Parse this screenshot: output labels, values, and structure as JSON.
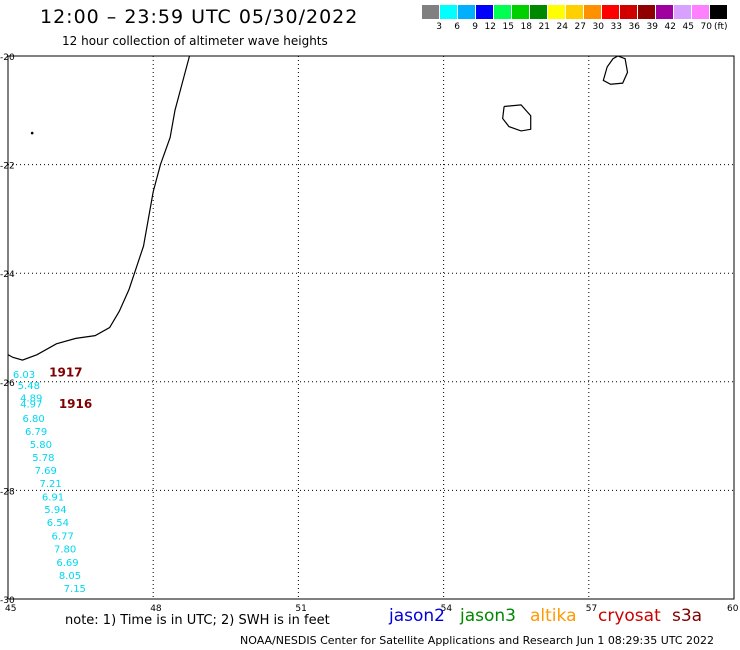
{
  "header": {
    "title": "12:00 – 23:59 UTC 05/30/2022",
    "subtitle": "12 hour collection of altimeter wave heights"
  },
  "color_scale": {
    "labels": [
      "3",
      "6",
      "9",
      "12",
      "15",
      "18",
      "21",
      "24",
      "27",
      "30",
      "33",
      "36",
      "39",
      "42",
      "45",
      "70"
    ],
    "unit": "(ft)",
    "colors": [
      "#808080",
      "#00ffff",
      "#00b0ff",
      "#0000ff",
      "#00ff50",
      "#00d000",
      "#008800",
      "#ffff00",
      "#ffd000",
      "#ff9000",
      "#ff0000",
      "#d00000",
      "#900000",
      "#a000a0",
      "#d8a0ff",
      "#ff80ff",
      "#000000"
    ]
  },
  "map": {
    "x_ticks": [
      "45",
      "48",
      "51",
      "54",
      "57",
      "60"
    ],
    "y_ticks": [
      "-20",
      "-22",
      "-24",
      "-26",
      "-28",
      "-30"
    ],
    "x_range": [
      45,
      60
    ],
    "y_range": [
      -30,
      -20
    ],
    "coast_color": "#000000"
  },
  "wave_labels": [
    {
      "value": "6.03",
      "lon": 45.1,
      "lat": -25.93
    },
    {
      "value": "5.48",
      "lon": 45.2,
      "lat": -26.13
    },
    {
      "value": "4.89",
      "lon": 45.25,
      "lat": -26.36
    },
    {
      "value": "4.97",
      "lon": 45.25,
      "lat": -26.47
    },
    {
      "value": "6.80",
      "lon": 45.3,
      "lat": -26.74
    },
    {
      "value": "6.79",
      "lon": 45.35,
      "lat": -26.98
    },
    {
      "value": "5.80",
      "lon": 45.45,
      "lat": -27.22
    },
    {
      "value": "5.78",
      "lon": 45.5,
      "lat": -27.46
    },
    {
      "value": "7.69",
      "lon": 45.55,
      "lat": -27.7
    },
    {
      "value": "7.21",
      "lon": 45.65,
      "lat": -27.94
    },
    {
      "value": "6.91",
      "lon": 45.7,
      "lat": -28.19
    },
    {
      "value": "5.94",
      "lon": 45.75,
      "lat": -28.42
    },
    {
      "value": "6.54",
      "lon": 45.8,
      "lat": -28.66
    },
    {
      "value": "6.77",
      "lon": 45.9,
      "lat": -28.9
    },
    {
      "value": "7.80",
      "lon": 45.95,
      "lat": -29.14
    },
    {
      "value": "6.69",
      "lon": 46.0,
      "lat": -29.39
    },
    {
      "value": "8.05",
      "lon": 46.05,
      "lat": -29.63
    },
    {
      "value": "7.15",
      "lon": 46.15,
      "lat": -29.87
    }
  ],
  "wave_label_color": "#00d8f0",
  "track_labels": [
    {
      "value": "1917",
      "lon": 45.85,
      "lat": -25.9
    },
    {
      "value": "1916",
      "lon": 46.05,
      "lat": -26.48
    }
  ],
  "track_label_color": "#800000",
  "footer": {
    "note": "note:  1) Time is in UTC;  2) SWH is in feet",
    "credit": "NOAA/NESDIS Center for Satellite Applications and Research     Jun  1 08:29:35 UTC 2022",
    "satellites": [
      {
        "name": "jason2",
        "color": "#0000dd"
      },
      {
        "name": "jason3",
        "color": "#008800"
      },
      {
        "name": "altika",
        "color": "#ff9900"
      },
      {
        "name": "cryosat",
        "color": "#cc0000"
      },
      {
        "name": "s3a",
        "color": "#800000"
      }
    ]
  }
}
